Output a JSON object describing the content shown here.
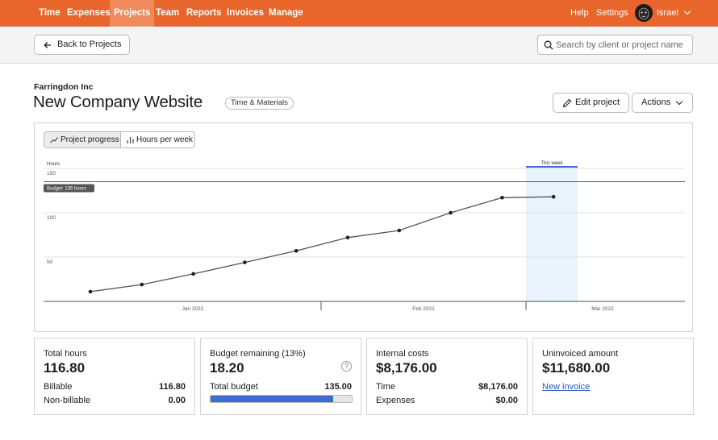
{
  "nav": {
    "items": [
      {
        "label": "Time"
      },
      {
        "label": "Expenses"
      },
      {
        "label": "Projects"
      },
      {
        "label": "Team"
      },
      {
        "label": "Reports"
      },
      {
        "label": "Invoices"
      },
      {
        "label": "Manage"
      }
    ],
    "active": "Projects",
    "help": "Help",
    "settings": "Settings",
    "user": "Israel"
  },
  "subheader": {
    "back_label": "Back to Projects",
    "search_placeholder": "Search by client or project name"
  },
  "project": {
    "client": "Farringdon Inc",
    "title": "New Company Website",
    "type_tag": "Time & Materials",
    "edit_label": "Edit project",
    "actions_label": "Actions"
  },
  "chart_tabs": {
    "progress": "Project progress",
    "hours_per_week": "Hours per week",
    "active": "progress"
  },
  "chart_data": {
    "type": "line",
    "ylabel": "Hours",
    "ylim": [
      0,
      150
    ],
    "yticks": [
      50,
      100,
      150
    ],
    "x_labels": [
      "Jan 2022",
      "Feb 2022",
      "Mar 2022"
    ],
    "budget": 135,
    "budget_label": "Budget: 135 hours",
    "highlight_label": "This week",
    "series": [
      {
        "values": [
          11,
          19,
          31,
          44,
          57,
          72,
          80,
          100,
          117,
          118
        ]
      }
    ],
    "colors": {
      "line": "#555555",
      "budget": "#555555",
      "highlight": "#e9f3fe",
      "highlight_top": "#3e6bd6"
    }
  },
  "stats": {
    "total_hours": {
      "label": "Total hours",
      "value": "116.80",
      "rows": [
        {
          "label": "Billable",
          "value": "116.80"
        },
        {
          "label": "Non-billable",
          "value": "0.00"
        }
      ]
    },
    "budget_remaining": {
      "label": "Budget remaining (13%)",
      "value": "18.20",
      "total_label": "Total budget",
      "total_value": "135.00",
      "spent_fraction": 0.87
    },
    "internal_costs": {
      "label": "Internal costs",
      "value": "$8,176.00",
      "rows": [
        {
          "label": "Time",
          "value": "$8,176.00"
        },
        {
          "label": "Expenses",
          "value": "$0.00"
        }
      ]
    },
    "uninvoiced": {
      "label": "Uninvoiced amount",
      "value": "$11,680.00",
      "link": "New invoice"
    }
  },
  "colors": {
    "brand": "#e8662b",
    "nav_active": "#f08a5d",
    "progress_bar": "#3e6bd6",
    "link": "#2f56c4"
  }
}
